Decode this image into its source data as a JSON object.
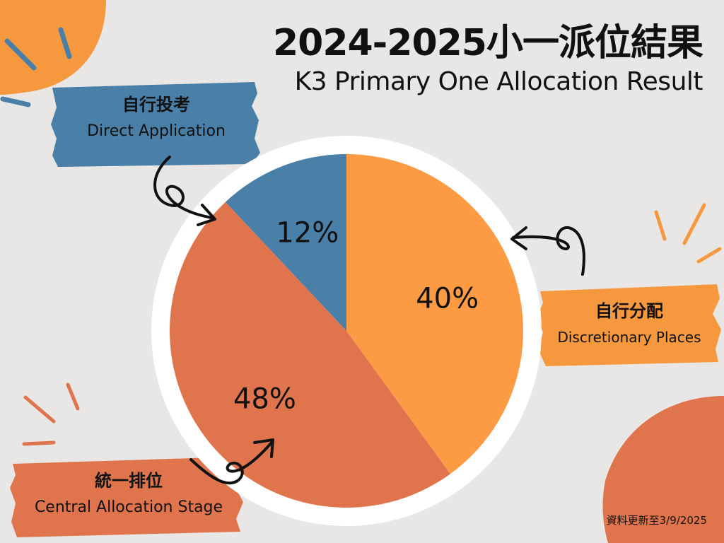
{
  "title": {
    "main": "2024-2025小一派位結果",
    "sub": "K3 Primary One Allocation Result"
  },
  "colors": {
    "background": "#e8e7e5",
    "blue": "#4a7fa8",
    "orange_light": "#fd9b44",
    "orange_dark": "#e0754d",
    "accent_orange": "#f6983d",
    "ring": "#ffffff"
  },
  "chart_data": {
    "type": "pie",
    "start_angle_deg": 0,
    "direction": "clockwise",
    "slices": [
      {
        "label": "自行分配 Discretionary Places",
        "value": 40,
        "display": "40%",
        "color": "#fd9b44"
      },
      {
        "label": "統一排位 Central Allocation Stage",
        "value": 48,
        "display": "48%",
        "color": "#e0754d"
      },
      {
        "label": "自行投考 Direct Application",
        "value": 12,
        "display": "12%",
        "color": "#4a7fa8"
      }
    ]
  },
  "labels": {
    "direct": {
      "zh": "自行投考",
      "en": "Direct Application"
    },
    "discretionary": {
      "zh": "自行分配",
      "en": "Discretionary Places"
    },
    "central": {
      "zh": "統一排位",
      "en": "Central Allocation Stage"
    }
  },
  "footnote": "資料更新至3/9/2025"
}
